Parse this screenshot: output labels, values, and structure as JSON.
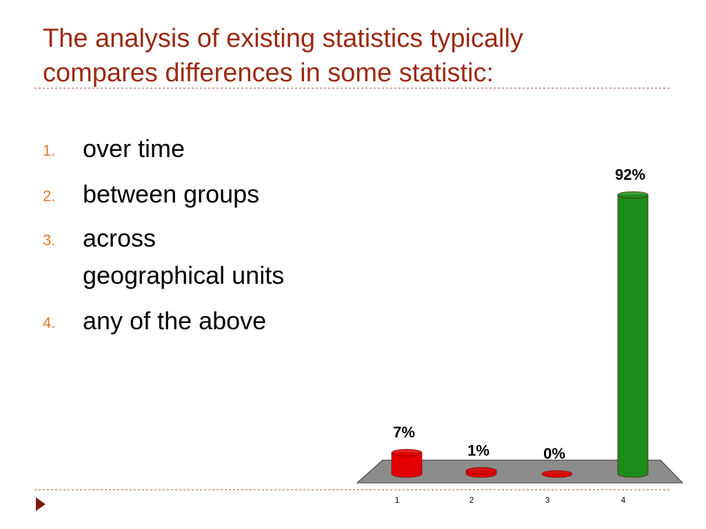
{
  "slide": {
    "title": [
      "The analysis of existing statistics typically",
      "compares differences in some statistic:"
    ],
    "items": [
      {
        "number": "1.",
        "lines": [
          "over time"
        ]
      },
      {
        "number": "2.",
        "lines": [
          "between groups"
        ]
      },
      {
        "number": "3.",
        "lines": [
          "across",
          "geographical units"
        ]
      },
      {
        "number": "4.",
        "lines": [
          "any of the above"
        ]
      }
    ]
  },
  "chart_data": {
    "type": "bar",
    "categories": [
      "1",
      "2",
      "3",
      "4"
    ],
    "values": [
      7,
      1,
      0,
      92
    ],
    "value_labels": [
      "7%",
      "1%",
      "0%",
      "92%"
    ],
    "colors": [
      "#e30000",
      "#e30000",
      "#e30000",
      "#1a8c1a"
    ]
  }
}
